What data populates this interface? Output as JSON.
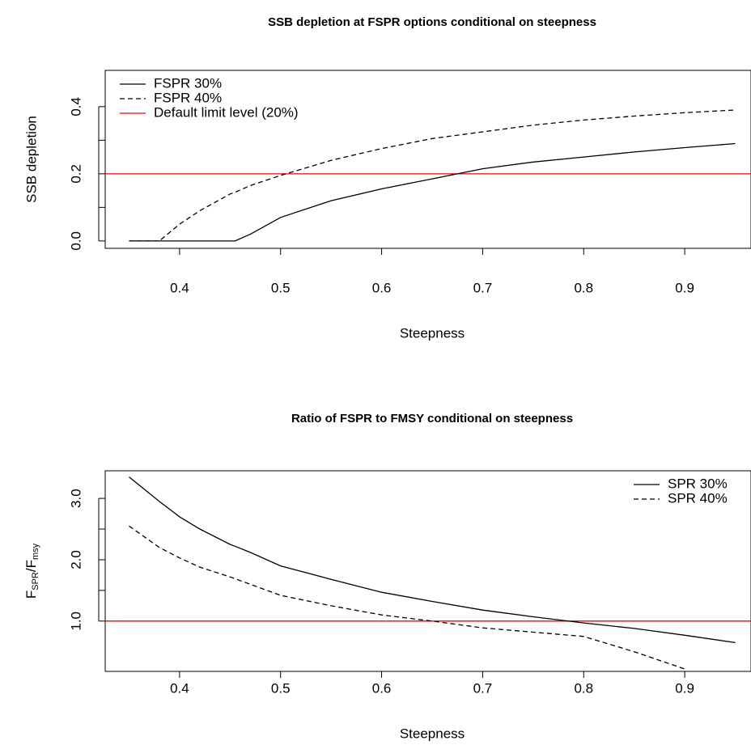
{
  "chart_data": [
    {
      "type": "line",
      "title": "SSB depletion at FSPR options conditional on steepness",
      "xlabel": "Steepness",
      "ylabel": "SSB depletion",
      "x": [
        0.35,
        0.38,
        0.4,
        0.42,
        0.45,
        0.455,
        0.47,
        0.5,
        0.55,
        0.6,
        0.65,
        0.7,
        0.75,
        0.8,
        0.85,
        0.9,
        0.95
      ],
      "series": [
        {
          "name": "FSPR 30%",
          "color": "#000000",
          "dash": "solid",
          "values": [
            0,
            0,
            0,
            0,
            0,
            0,
            0.02,
            0.07,
            0.12,
            0.155,
            0.185,
            0.215,
            0.235,
            0.25,
            0.265,
            0.278,
            0.29
          ]
        },
        {
          "name": "FSPR 40%",
          "color": "#000000",
          "dash": "dashed",
          "values": [
            0,
            0,
            0.05,
            0.09,
            0.14,
            0.145,
            0.165,
            0.195,
            0.24,
            0.275,
            0.305,
            0.325,
            0.345,
            0.36,
            0.372,
            0.382,
            0.39
          ]
        }
      ],
      "reference_line": {
        "name": "Default limit level (20%)",
        "value": 0.2,
        "color": "#ff0000"
      },
      "xlim": [
        0.3264,
        0.9656
      ],
      "ylim": [
        -0.022,
        0.508
      ],
      "xticks": [
        0.4,
        0.5,
        0.6,
        0.7,
        0.8,
        0.9
      ],
      "yticks": [
        {
          "value": 0,
          "label": "0.0"
        },
        {
          "value": 0.2,
          "label": "0.2"
        },
        {
          "value": 0.4,
          "label": "0.4"
        }
      ],
      "yminor_ticks": [
        0.1,
        0.3
      ],
      "legend": "top-left"
    },
    {
      "type": "line",
      "title": "Ratio of FSPR to FMSY conditional on steepness",
      "xlabel": "Steepness",
      "ylabel_parts": [
        "F",
        "SPR",
        "/F",
        "msy"
      ],
      "x": [
        0.35,
        0.38,
        0.4,
        0.42,
        0.45,
        0.455,
        0.47,
        0.5,
        0.55,
        0.6,
        0.65,
        0.7,
        0.75,
        0.8,
        0.85,
        0.9,
        0.95
      ],
      "series": [
        {
          "name": "SPR 30%",
          "color": "#000000",
          "dash": "solid",
          "values": [
            3.35,
            2.95,
            2.7,
            2.5,
            2.25,
            2.22,
            2.12,
            1.9,
            1.68,
            1.47,
            1.32,
            1.18,
            1.07,
            0.97,
            0.88,
            0.77,
            0.65
          ]
        },
        {
          "name": "SPR 40%",
          "color": "#000000",
          "dash": "dashed",
          "values": [
            2.55,
            2.2,
            2.03,
            1.88,
            1.72,
            1.69,
            1.6,
            1.42,
            1.25,
            1.1,
            1.0,
            0.89,
            0.82,
            0.75,
            0.5,
            0.22,
            null
          ]
        }
      ],
      "reference_line": {
        "value": 1.0,
        "color": "#ff0000"
      },
      "xlim": [
        0.3264,
        0.9656
      ],
      "ylim": [
        0.18,
        3.45
      ],
      "xticks": [
        0.4,
        0.5,
        0.6,
        0.7,
        0.8,
        0.9
      ],
      "yticks": [
        {
          "value": 1,
          "label": "1.0"
        },
        {
          "value": 2,
          "label": "2.0"
        },
        {
          "value": 3,
          "label": "3.0"
        }
      ],
      "yminor_ticks": [
        1.5,
        2.5
      ],
      "legend": "top-right"
    }
  ]
}
